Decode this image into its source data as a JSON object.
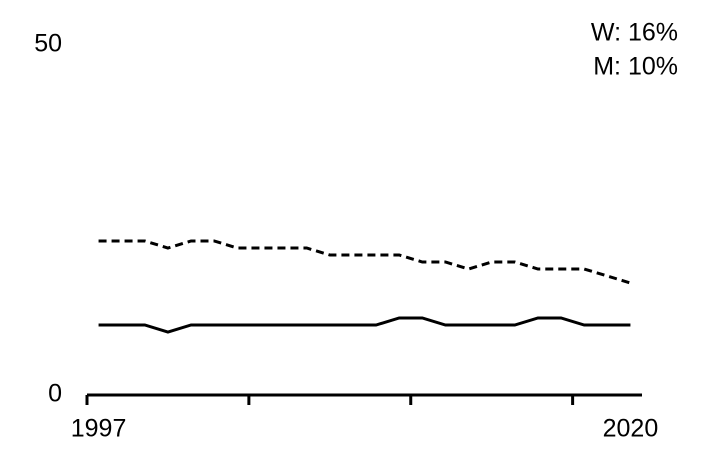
{
  "chart_data": {
    "type": "line",
    "annotations": [
      "W: 16%",
      "M: 10%"
    ],
    "x": [
      1997,
      1998,
      1999,
      2000,
      2001,
      2002,
      2003,
      2004,
      2005,
      2006,
      2007,
      2008,
      2009,
      2010,
      2011,
      2012,
      2013,
      2014,
      2015,
      2016,
      2017,
      2018,
      2019,
      2020
    ],
    "series": [
      {
        "color": "#000000",
        "dash": true,
        "values": [
          22,
          22,
          22,
          21,
          22,
          22,
          21,
          21,
          21,
          21,
          20,
          20,
          20,
          20,
          19,
          19,
          18,
          19,
          19,
          18,
          18,
          18,
          17,
          16
        ]
      },
      {
        "color": "#000000",
        "dash": false,
        "values": [
          10,
          10,
          10,
          9,
          10,
          10,
          10,
          10,
          10,
          10,
          10,
          10,
          10,
          11,
          11,
          10,
          10,
          10,
          10,
          11,
          11,
          10,
          10,
          10
        ]
      }
    ],
    "xlim": [
      1996.5,
      2020.5
    ],
    "xticks": [
      1997,
      2020
    ],
    "xtick_marks": [
      1996.5,
      2003.5,
      2010.5,
      2017.5
    ],
    "ylim": [
      0,
      50
    ],
    "yticks": [
      0,
      50
    ],
    "grid": false
  }
}
